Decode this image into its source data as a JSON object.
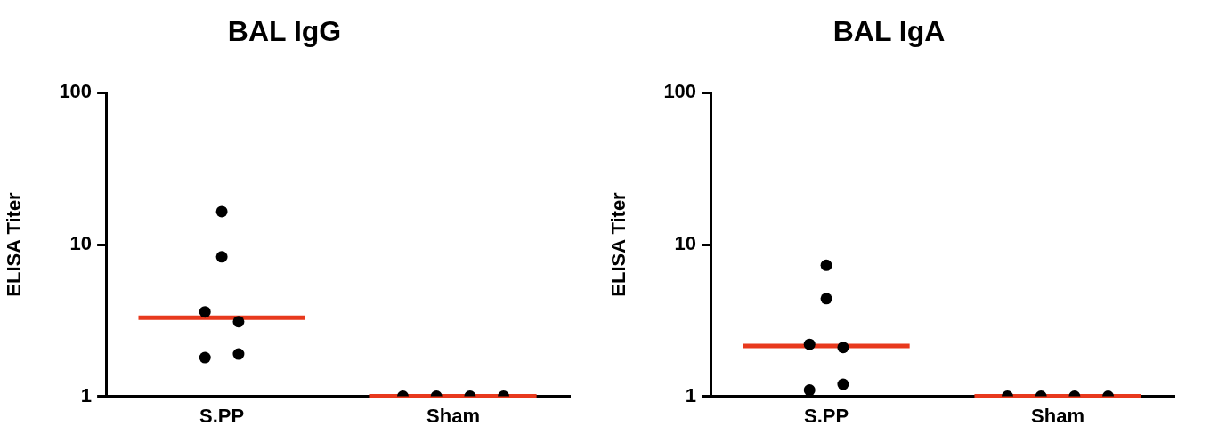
{
  "chart_data": [
    {
      "type": "scatter",
      "title": "BAL IgG",
      "ylabel": "ELISA Titer",
      "categories": [
        "S.PP",
        "Sham"
      ],
      "log": "y",
      "ylim": [
        1,
        100
      ],
      "yticks": [
        1,
        10,
        100
      ],
      "grid": false,
      "legend": false,
      "marker": "circle",
      "series": [
        {
          "color": "#000000",
          "x": [
            "S.PP",
            "S.PP",
            "S.PP",
            "S.PP",
            "S.PP",
            "S.PP",
            "Sham",
            "Sham",
            "Sham",
            "Sham"
          ],
          "values": [
            16.5,
            8.3,
            3.6,
            3.1,
            1.8,
            1.9,
            1,
            1,
            1,
            1
          ]
        },
        {
          "type": "box",
          "color": "#e8391d",
          "boxes": [
            {
              "low": 3.3,
              "q1": 3.3,
              "median": 3.3,
              "q3": 3.3,
              "high": 3.3
            },
            {
              "low": 1,
              "q1": 1,
              "median": 1,
              "q3": 1,
              "high": 1
            }
          ]
        }
      ]
    },
    {
      "type": "scatter",
      "title": "BAL IgA",
      "ylabel": "ELISA Titer",
      "categories": [
        "S.PP",
        "Sham"
      ],
      "log": "y",
      "ylim": [
        1,
        100
      ],
      "yticks": [
        1,
        10,
        100
      ],
      "grid": false,
      "legend": false,
      "marker": "circle",
      "series": [
        {
          "color": "#000000",
          "x": [
            "S.PP",
            "S.PP",
            "S.PP",
            "S.PP",
            "S.PP",
            "S.PP",
            "Sham",
            "Sham",
            "Sham",
            "Sham"
          ],
          "values": [
            7.3,
            4.4,
            2.2,
            2.1,
            1.1,
            1.2,
            1,
            1,
            1,
            1
          ]
        },
        {
          "type": "box",
          "color": "#e8391d",
          "boxes": [
            {
              "low": 2.15,
              "q1": 2.15,
              "median": 2.15,
              "q3": 2.15,
              "high": 2.15
            },
            {
              "low": 1,
              "q1": 1,
              "median": 1,
              "q3": 1,
              "high": 1
            }
          ]
        }
      ]
    }
  ]
}
